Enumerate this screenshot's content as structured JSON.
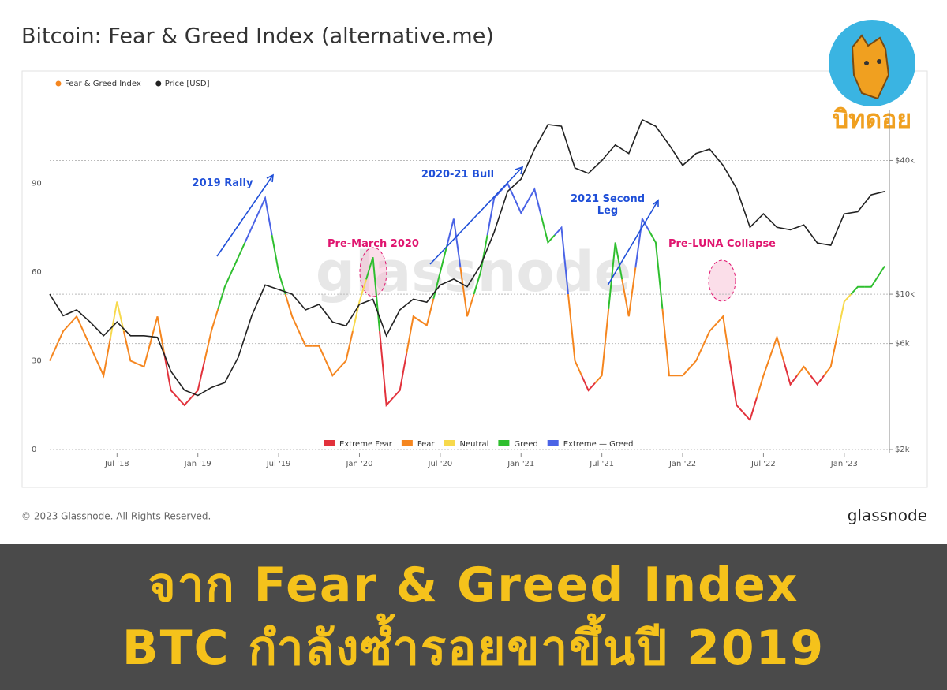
{
  "header": {
    "title": "Bitcoin: Fear & Greed Index (alternative.me)"
  },
  "logo": {
    "text": "บิทดอย"
  },
  "chart_data": {
    "type": "line",
    "watermark": "glassnode",
    "x": [
      "2018-02",
      "2018-03",
      "2018-04",
      "2018-05",
      "2018-06",
      "2018-07",
      "2018-08",
      "2018-09",
      "2018-10",
      "2018-11",
      "2018-12",
      "2019-01",
      "2019-02",
      "2019-03",
      "2019-04",
      "2019-05",
      "2019-06",
      "2019-07",
      "2019-08",
      "2019-09",
      "2019-10",
      "2019-11",
      "2019-12",
      "2020-01",
      "2020-02",
      "2020-03",
      "2020-04",
      "2020-05",
      "2020-06",
      "2020-07",
      "2020-08",
      "2020-09",
      "2020-10",
      "2020-11",
      "2020-12",
      "2021-01",
      "2021-02",
      "2021-03",
      "2021-04",
      "2021-05",
      "2021-06",
      "2021-07",
      "2021-08",
      "2021-09",
      "2021-10",
      "2021-11",
      "2021-12",
      "2022-01",
      "2022-02",
      "2022-03",
      "2022-04",
      "2022-05",
      "2022-06",
      "2022-07",
      "2022-08",
      "2022-09",
      "2022-10",
      "2022-11",
      "2022-12",
      "2023-01",
      "2023-02",
      "2023-03",
      "2023-04"
    ],
    "series": [
      {
        "name": "Fear & Greed Index",
        "color": "#f7931a",
        "axis": "y",
        "values": [
          30,
          40,
          45,
          35,
          25,
          50,
          30,
          28,
          45,
          20,
          15,
          20,
          40,
          55,
          65,
          75,
          85,
          60,
          45,
          35,
          35,
          25,
          30,
          50,
          65,
          15,
          20,
          45,
          42,
          60,
          78,
          45,
          60,
          85,
          90,
          80,
          88,
          70,
          75,
          30,
          20,
          25,
          70,
          45,
          78,
          70,
          25,
          25,
          30,
          40,
          45,
          15,
          10,
          25,
          38,
          22,
          28,
          22,
          28,
          50,
          55,
          55,
          62
        ]
      },
      {
        "name": "Price [USD]",
        "color": "#222222",
        "axis": "y2",
        "values": [
          10000,
          8000,
          8500,
          7500,
          6500,
          7500,
          6500,
          6500,
          6400,
          4500,
          3700,
          3500,
          3800,
          4000,
          5200,
          8000,
          11000,
          10500,
          10000,
          8500,
          9000,
          7500,
          7200,
          9000,
          9500,
          6500,
          8500,
          9500,
          9200,
          11000,
          11700,
          10800,
          13500,
          19000,
          29000,
          33000,
          45000,
          58000,
          57000,
          37000,
          35000,
          40000,
          47000,
          43000,
          61000,
          57000,
          47000,
          38000,
          43000,
          45000,
          38000,
          30000,
          20000,
          23000,
          20000,
          19500,
          20500,
          17000,
          16600,
          23000,
          23500,
          28000,
          29000
        ]
      }
    ],
    "zones": [
      {
        "name": "Extreme Fear",
        "color": "#e2323c",
        "from": 0
      },
      {
        "name": "Fear",
        "color": "#f5861f",
        "from": 25
      },
      {
        "name": "Neutral",
        "color": "#f7d94c",
        "from": 46
      },
      {
        "name": "Greed",
        "color": "#2fbf2f",
        "from": 55
      },
      {
        "name": "Extreme — Greed",
        "color": "#4a63e6",
        "from": 75
      }
    ],
    "xlim": [
      "2018-02",
      "2023-04"
    ],
    "xticks": [
      {
        "value": "2018-07",
        "label": "Jul '18"
      },
      {
        "value": "2019-01",
        "label": "Jan '19"
      },
      {
        "value": "2019-07",
        "label": "Jul '19"
      },
      {
        "value": "2020-01",
        "label": "Jan '20"
      },
      {
        "value": "2020-07",
        "label": "Jul '20"
      },
      {
        "value": "2021-01",
        "label": "Jan '21"
      },
      {
        "value": "2021-07",
        "label": "Jul '21"
      },
      {
        "value": "2022-01",
        "label": "Jan '22"
      },
      {
        "value": "2022-07",
        "label": "Jul '22"
      },
      {
        "value": "2023-01",
        "label": "Jan '23"
      }
    ],
    "ylim": [
      0,
      116
    ],
    "yticks": [
      0,
      30,
      60,
      90
    ],
    "y2lim": [
      2000,
      70000
    ],
    "y2ticks": [
      {
        "value": 2000,
        "label": "$2k"
      },
      {
        "value": 6000,
        "label": "$6k"
      },
      {
        "value": 10000,
        "label": "$10k"
      },
      {
        "value": 40000,
        "label": "$40k"
      }
    ],
    "y2log": true,
    "grid": true,
    "annotations": [
      "2019 Rally",
      "Pre-March 2020",
      "2020-21 Bull",
      "2021 Second Leg",
      "Pre-LUNA Collapse"
    ]
  },
  "footer": {
    "copyright": "© 2023 Glassnode. All Rights Reserved.",
    "brand": "glassnode"
  },
  "banner": {
    "lines": [
      "จาก Fear & Greed Index",
      "BTC กำลังซ้ำรอยขาขึ้นปี 2019"
    ]
  }
}
